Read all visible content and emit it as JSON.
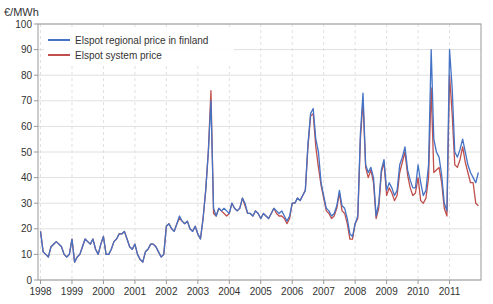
{
  "chart_data": {
    "type": "line",
    "y_label": "€/MWh",
    "x": [
      1998,
      1998.083333333333,
      1998.166666666667,
      1998.25,
      1998.333333333333,
      1998.416666666667,
      1998.5,
      1998.583333333333,
      1998.666666666667,
      1998.75,
      1998.833333333333,
      1998.916666666667,
      1999,
      1999.083333333333,
      1999.166666666667,
      1999.25,
      1999.333333333333,
      1999.416666666667,
      1999.5,
      1999.583333333333,
      1999.666666666667,
      1999.75,
      1999.833333333333,
      1999.916666666667,
      2000,
      2000.083333333333,
      2000.166666666667,
      2000.25,
      2000.333333333333,
      2000.416666666667,
      2000.5,
      2000.583333333333,
      2000.666666666667,
      2000.75,
      2000.833333333333,
      2000.916666666667,
      2001,
      2001.083333333333,
      2001.166666666667,
      2001.25,
      2001.333333333333,
      2001.416666666667,
      2001.5,
      2001.583333333333,
      2001.666666666667,
      2001.75,
      2001.833333333333,
      2001.916666666667,
      2002,
      2002.083333333333,
      2002.166666666667,
      2002.25,
      2002.333333333333,
      2002.416666666667,
      2002.5,
      2002.583333333333,
      2002.666666666667,
      2002.75,
      2002.833333333333,
      2002.916666666667,
      2003,
      2003.083333333333,
      2003.166666666667,
      2003.25,
      2003.333333333333,
      2003.416666666667,
      2003.5,
      2003.583333333333,
      2003.666666666667,
      2003.75,
      2003.833333333333,
      2003.916666666667,
      2004,
      2004.083333333333,
      2004.166666666667,
      2004.25,
      2004.333333333333,
      2004.416666666667,
      2004.5,
      2004.583333333333,
      2004.666666666667,
      2004.75,
      2004.833333333333,
      2004.916666666667,
      2005,
      2005.083333333333,
      2005.166666666667,
      2005.25,
      2005.333333333333,
      2005.416666666667,
      2005.5,
      2005.583333333333,
      2005.666666666667,
      2005.75,
      2005.833333333333,
      2005.916666666667,
      2006,
      2006.083333333333,
      2006.166666666667,
      2006.25,
      2006.333333333333,
      2006.416666666667,
      2006.5,
      2006.583333333333,
      2006.666666666667,
      2006.75,
      2006.833333333333,
      2006.916666666667,
      2007,
      2007.083333333333,
      2007.166666666667,
      2007.25,
      2007.333333333333,
      2007.416666666667,
      2007.5,
      2007.583333333333,
      2007.666666666667,
      2007.75,
      2007.833333333333,
      2007.916666666667,
      2008,
      2008.083333333333,
      2008.166666666667,
      2008.25,
      2008.333333333333,
      2008.416666666667,
      2008.5,
      2008.583333333333,
      2008.666666666667,
      2008.75,
      2008.833333333333,
      2008.916666666667,
      2009,
      2009.083333333333,
      2009.166666666667,
      2009.25,
      2009.333333333333,
      2009.416666666667,
      2009.5,
      2009.583333333333,
      2009.666666666667,
      2009.75,
      2009.833333333333,
      2009.916666666667,
      2010,
      2010.083333333333,
      2010.166666666667,
      2010.25,
      2010.333333333333,
      2010.416666666667,
      2010.5,
      2010.583333333333,
      2010.666666666667,
      2010.75,
      2010.833333333333,
      2010.916666666667,
      2011,
      2011.083333333333,
      2011.166666666667,
      2011.25,
      2011.333333333333,
      2011.416666666667,
      2011.5,
      2011.583333333333,
      2011.666666666667,
      2011.75,
      2011.833333333333,
      2011.916666666667
    ],
    "series": [
      {
        "name": "Elspot system price",
        "color": "#C0504D",
        "values": [
          19,
          11,
          10,
          9,
          13,
          14,
          15,
          14,
          13,
          10,
          9,
          10,
          16,
          7,
          9,
          10,
          13,
          16,
          15,
          14,
          16,
          12,
          10,
          14,
          17,
          10,
          10,
          12,
          15,
          16,
          18,
          18,
          19,
          16,
          13,
          12,
          14,
          10,
          8,
          7,
          11,
          12,
          14,
          14,
          13,
          11,
          9,
          10,
          21,
          22,
          20,
          19,
          22,
          24,
          23,
          22,
          23,
          20,
          19,
          21,
          18,
          16,
          24,
          35,
          50,
          74,
          26,
          25,
          28,
          27,
          26,
          25,
          26,
          30,
          28,
          27,
          28,
          32,
          29,
          26,
          26,
          25,
          27,
          26,
          24,
          26,
          25,
          24,
          26,
          28,
          26,
          25,
          25,
          24,
          22,
          24,
          30,
          30,
          32,
          31,
          33,
          35,
          52,
          64,
          65,
          52,
          44,
          37,
          32,
          27,
          26,
          24,
          25,
          28,
          34,
          27,
          26,
          22,
          16,
          16,
          22,
          24,
          55,
          70,
          44,
          40,
          43,
          38,
          24,
          28,
          42,
          46,
          33,
          36,
          34,
          31,
          33,
          42,
          46,
          50,
          41,
          36,
          33,
          34,
          40,
          31,
          30,
          32,
          40,
          75,
          42,
          43,
          44,
          38,
          28,
          25,
          80,
          65,
          45,
          44,
          47,
          52,
          46,
          42,
          38,
          38,
          30,
          29
        ]
      },
      {
        "name": "Elspot regional price in finland",
        "color": "#4472C4",
        "values": [
          19,
          11,
          10,
          9,
          13,
          14,
          15,
          14,
          13,
          10,
          9,
          10,
          16,
          7,
          9,
          10,
          13,
          16,
          15,
          14,
          16,
          12,
          10,
          14,
          17,
          10,
          10,
          12,
          15,
          16,
          18,
          18,
          19,
          16,
          13,
          12,
          14,
          10,
          8,
          7,
          11,
          12,
          14,
          14,
          13,
          11,
          9,
          10,
          21,
          22,
          20,
          19,
          22,
          25,
          23,
          22,
          23,
          20,
          19,
          21,
          18,
          16,
          24,
          35,
          50,
          70,
          28,
          25,
          28,
          27,
          28,
          27,
          26,
          30,
          28,
          27,
          28,
          32,
          30,
          26,
          26,
          25,
          27,
          26,
          24,
          26,
          25,
          24,
          26,
          28,
          27,
          26,
          27,
          25,
          23,
          25,
          30,
          30,
          32,
          31,
          33,
          35,
          53,
          65,
          67,
          55,
          50,
          38,
          33,
          28,
          27,
          25,
          26,
          29,
          35,
          29,
          28,
          24,
          18,
          17,
          22,
          25,
          57,
          73,
          45,
          42,
          44,
          40,
          25,
          30,
          43,
          47,
          35,
          38,
          36,
          33,
          35,
          45,
          48,
          52,
          43,
          39,
          36,
          36,
          45,
          38,
          33,
          35,
          45,
          90,
          55,
          50,
          48,
          41,
          30,
          27,
          90,
          75,
          50,
          48,
          51,
          55,
          50,
          45,
          42,
          40,
          38,
          42
        ]
      }
    ],
    "xlim": [
      1997.92,
      2012.0
    ],
    "xticks": [
      1998,
      1999,
      2000,
      2001,
      2002,
      2003,
      2004,
      2005,
      2006,
      2007,
      2008,
      2009,
      2010,
      2011
    ],
    "ylim": [
      0,
      100
    ],
    "yticks": [
      0,
      10,
      20,
      30,
      40,
      50,
      60,
      70,
      80,
      90,
      100
    ],
    "grid": true,
    "legend": "upper left"
  }
}
